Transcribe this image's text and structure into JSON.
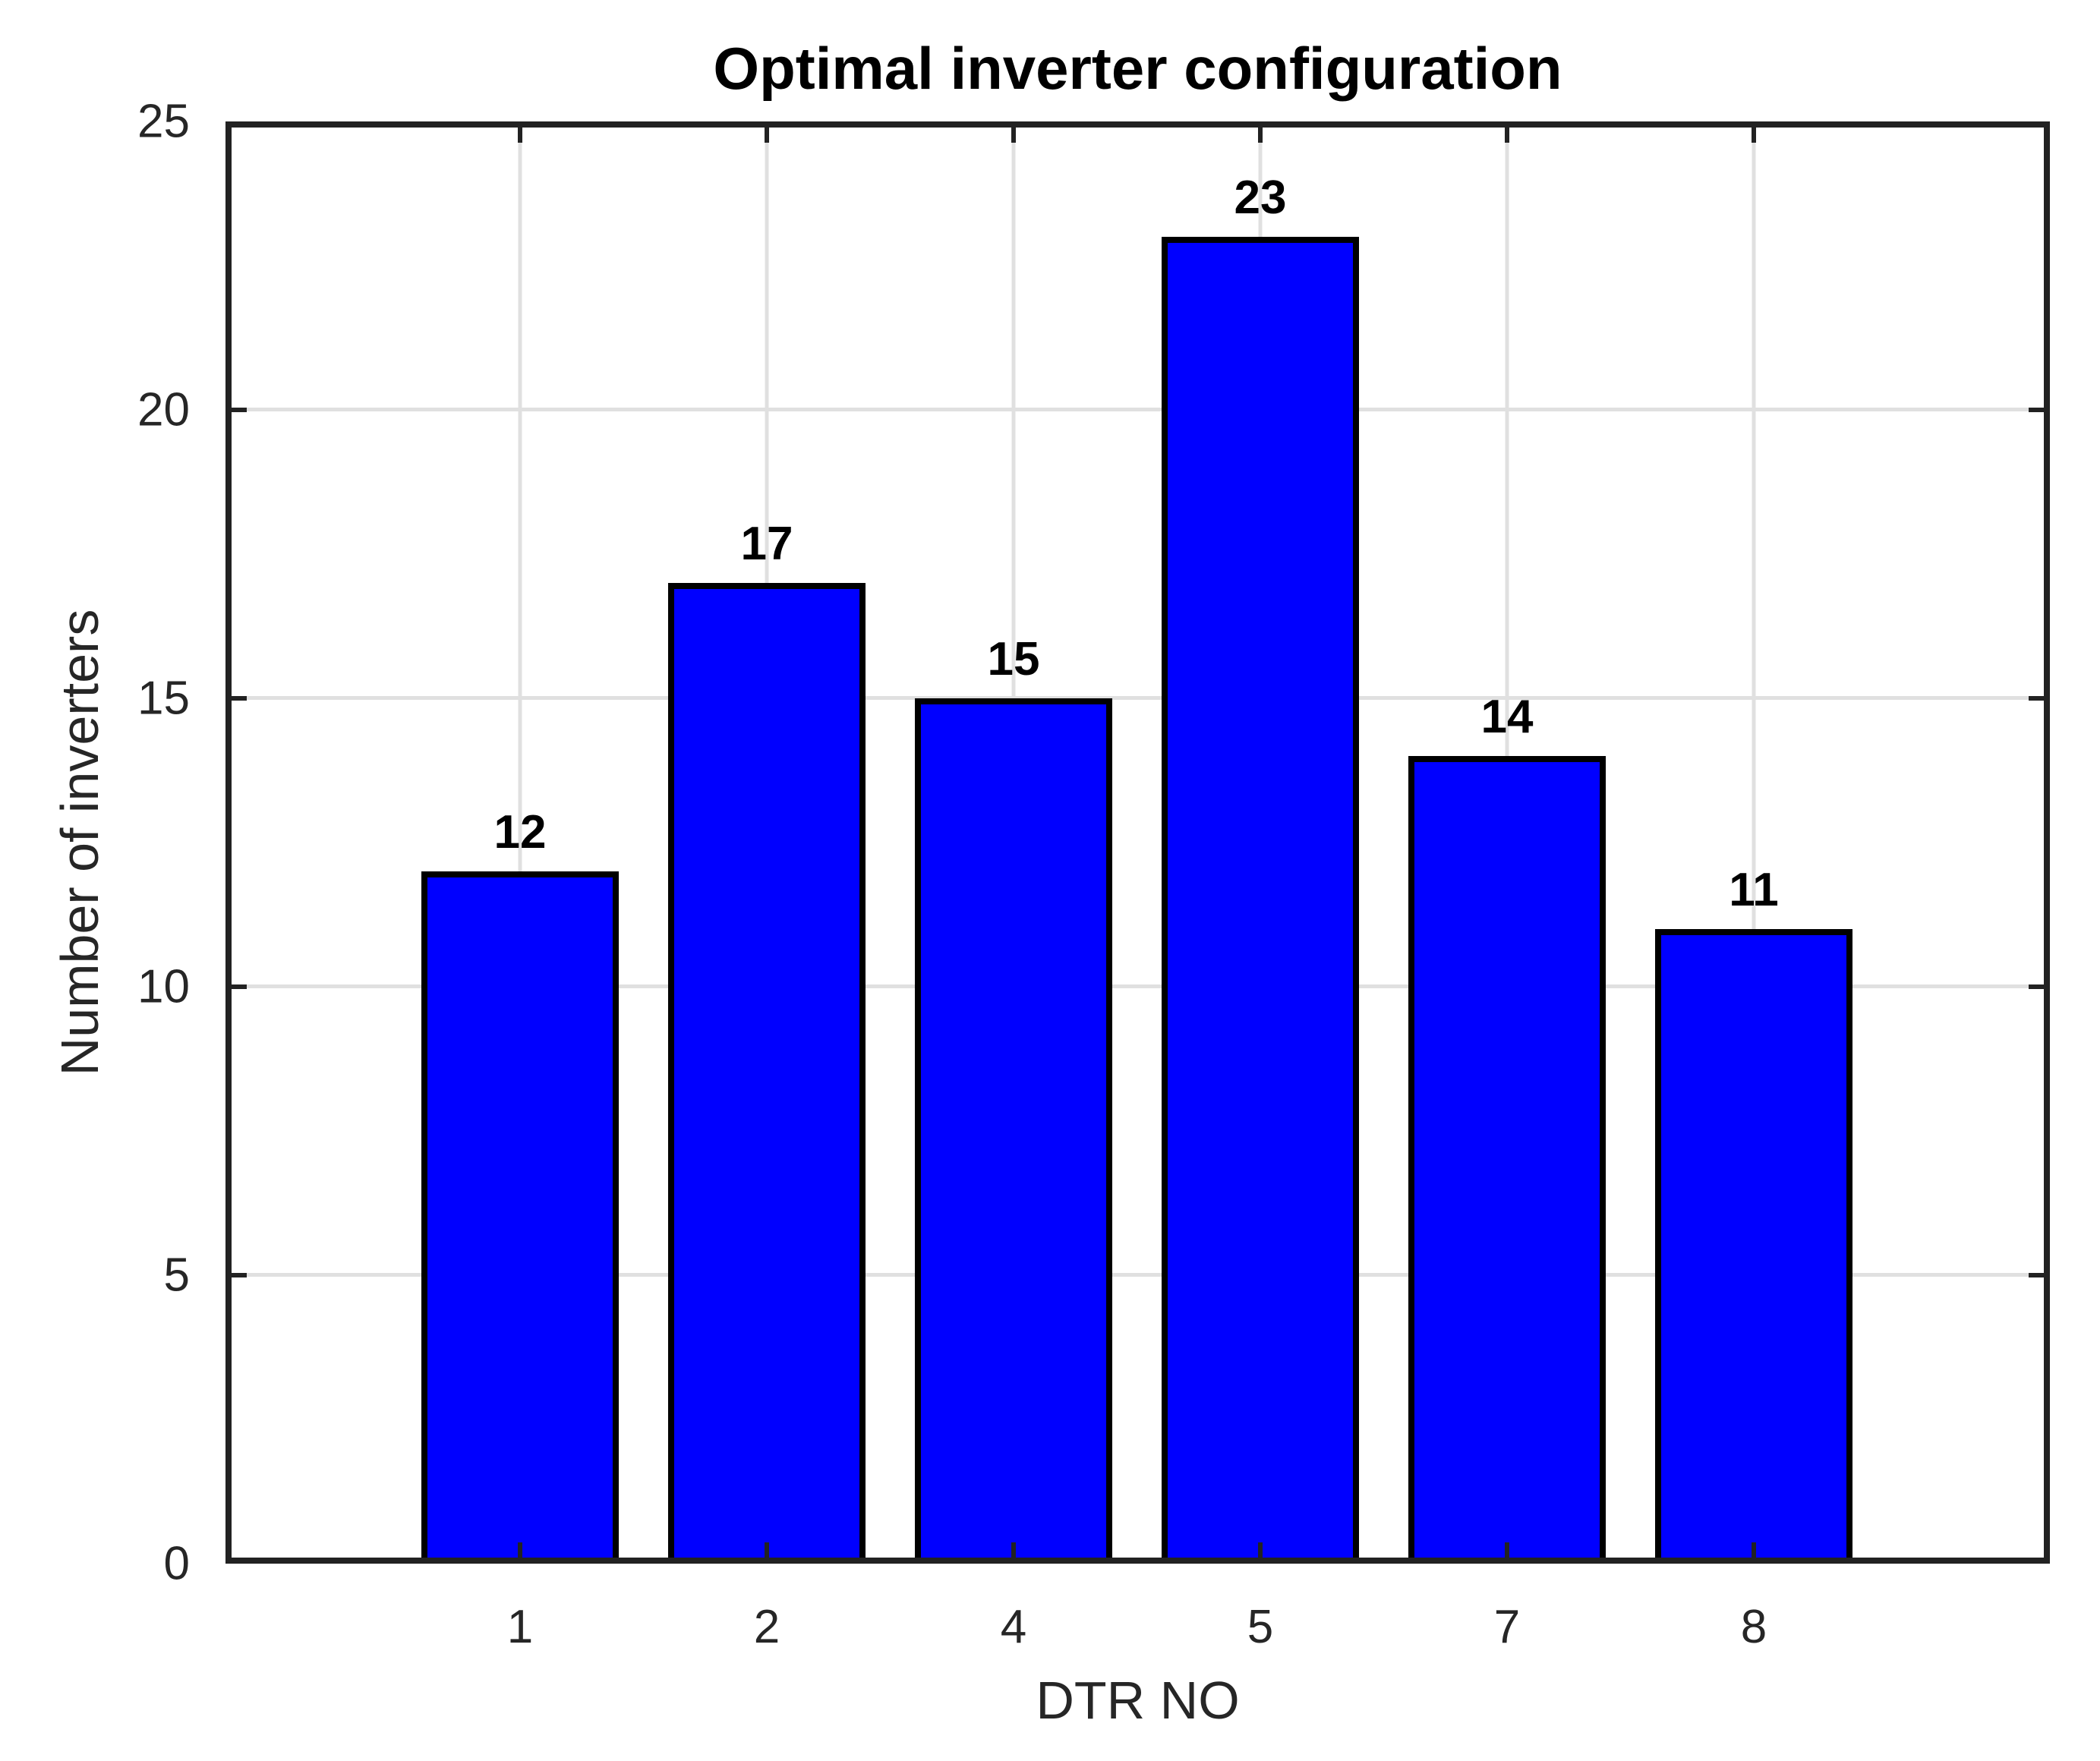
{
  "chart_data": {
    "type": "bar",
    "title": "Optimal inverter configuration",
    "xlabel": "DTR NO",
    "ylabel": "Number of inverters",
    "categories": [
      "1",
      "2",
      "4",
      "5",
      "7",
      "8"
    ],
    "values": [
      12,
      17,
      15,
      23,
      14,
      11
    ],
    "bar_value_labels": [
      "12",
      "17",
      "15",
      "23",
      "14",
      "11"
    ],
    "ylim": [
      0,
      25
    ],
    "yticks": [
      0,
      5,
      10,
      15,
      20,
      25
    ],
    "grid": true,
    "legend_position": "none",
    "colors": {
      "bar_fill": "#0000ff",
      "bar_edge": "#000000",
      "grid": "#e0e0e0",
      "axis_box": "#222222",
      "tick_label": "#262626",
      "title": "#000000",
      "value_label": "#000000"
    }
  }
}
